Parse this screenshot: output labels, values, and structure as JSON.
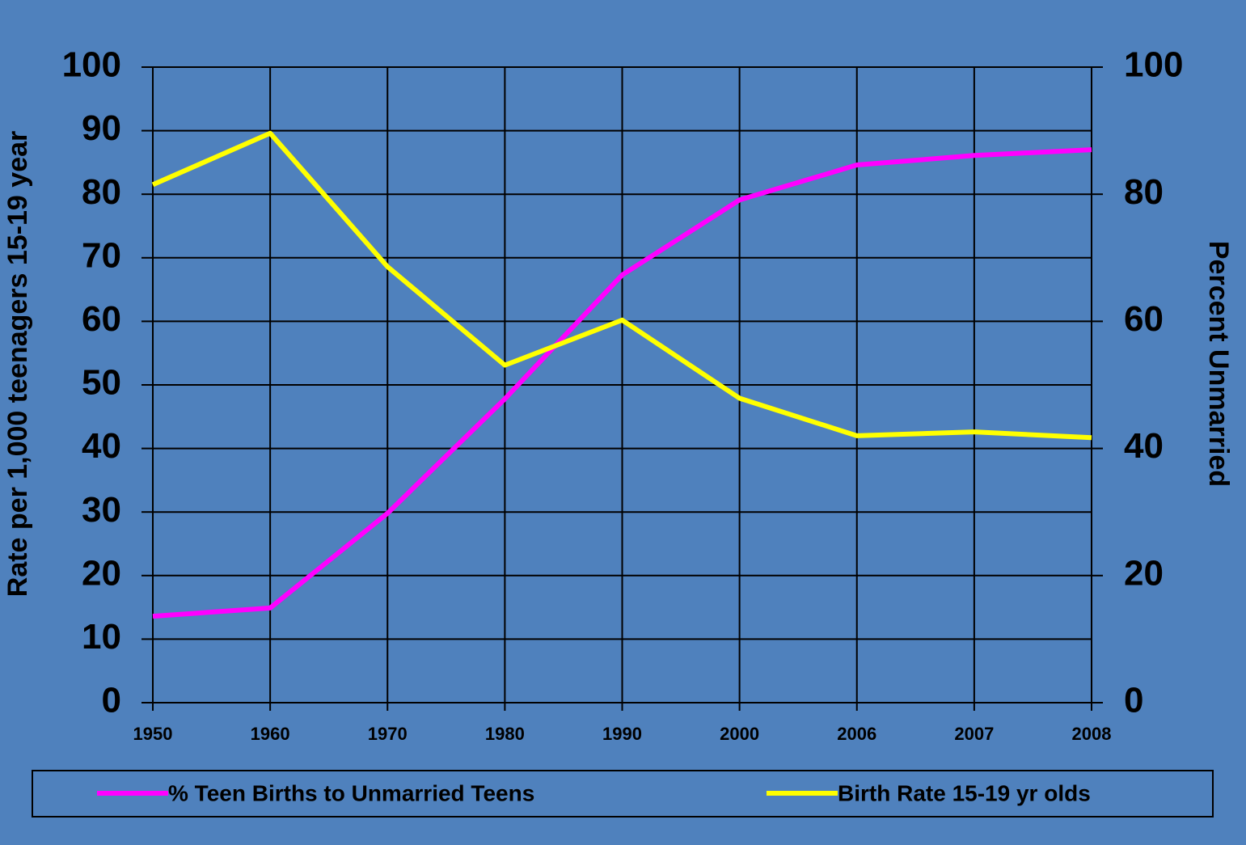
{
  "chart_data": {
    "type": "line",
    "categories": [
      "1950",
      "1960",
      "1970",
      "1980",
      "1990",
      "2000",
      "2006",
      "2007",
      "2008"
    ],
    "series": [
      {
        "name": "% Teen Births to Unmarried Teens",
        "color": "#ff00ff",
        "axis": "y2",
        "values": [
          13.6,
          14.9,
          29.8,
          47.8,
          67.3,
          79.1,
          84.6,
          86.1,
          87.0
        ]
      },
      {
        "name": "Birth Rate 15-19 yr olds",
        "color": "#ffff00",
        "values": [
          81.5,
          89.6,
          68.6,
          53.1,
          60.2,
          47.9,
          42.0,
          42.6,
          41.7
        ]
      }
    ],
    "y_label": "Rate per 1,000 teenagers 15-19 year",
    "y2_label": "Percent Unmarried",
    "ylim": [
      0,
      100
    ],
    "yticks": [
      0,
      10,
      20,
      30,
      40,
      50,
      60,
      70,
      80,
      90,
      100
    ],
    "y2lim": [
      0,
      100
    ],
    "y2ticks": [
      0,
      20,
      40,
      60,
      80,
      100
    ],
    "grid": true,
    "legend": "bottom"
  }
}
